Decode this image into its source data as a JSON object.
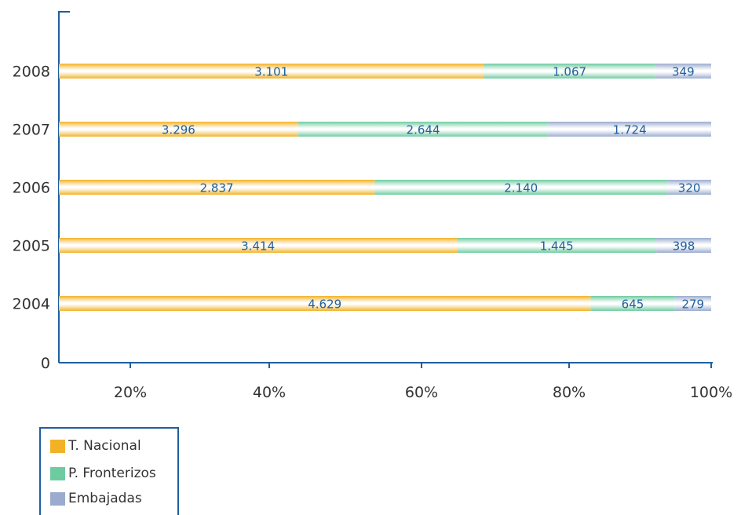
{
  "chart_data": {
    "type": "bar",
    "orientation": "horizontal",
    "stacked": "percent",
    "categories": [
      "2008",
      "2007",
      "2006",
      "2005",
      "2004"
    ],
    "series": [
      {
        "name": "T. Nacional",
        "color": "#f2b226",
        "values": [
          3101,
          3296,
          2837,
          3414,
          4629
        ],
        "labels": [
          "3.101",
          "3.296",
          "2.837",
          "3.414",
          "4.629"
        ]
      },
      {
        "name": "P. Fronterizos",
        "color": "#6ecb9f",
        "values": [
          1067,
          2644,
          2140,
          1445,
          645
        ],
        "labels": [
          "1.067",
          "2.644",
          "2.140",
          "1.445",
          "645"
        ]
      },
      {
        "name": "Embajadas",
        "color": "#9aabcf",
        "values": [
          349,
          1724,
          320,
          398,
          279
        ],
        "labels": [
          "349",
          "1.724",
          "320",
          "398",
          "279"
        ]
      }
    ],
    "x_ticks": [
      "20%",
      "40%",
      "60%",
      "80%",
      "100%"
    ],
    "y_zero_label": "0",
    "xlim": [
      10,
      100
    ],
    "grid": false,
    "legend_position": "bottom-left"
  }
}
